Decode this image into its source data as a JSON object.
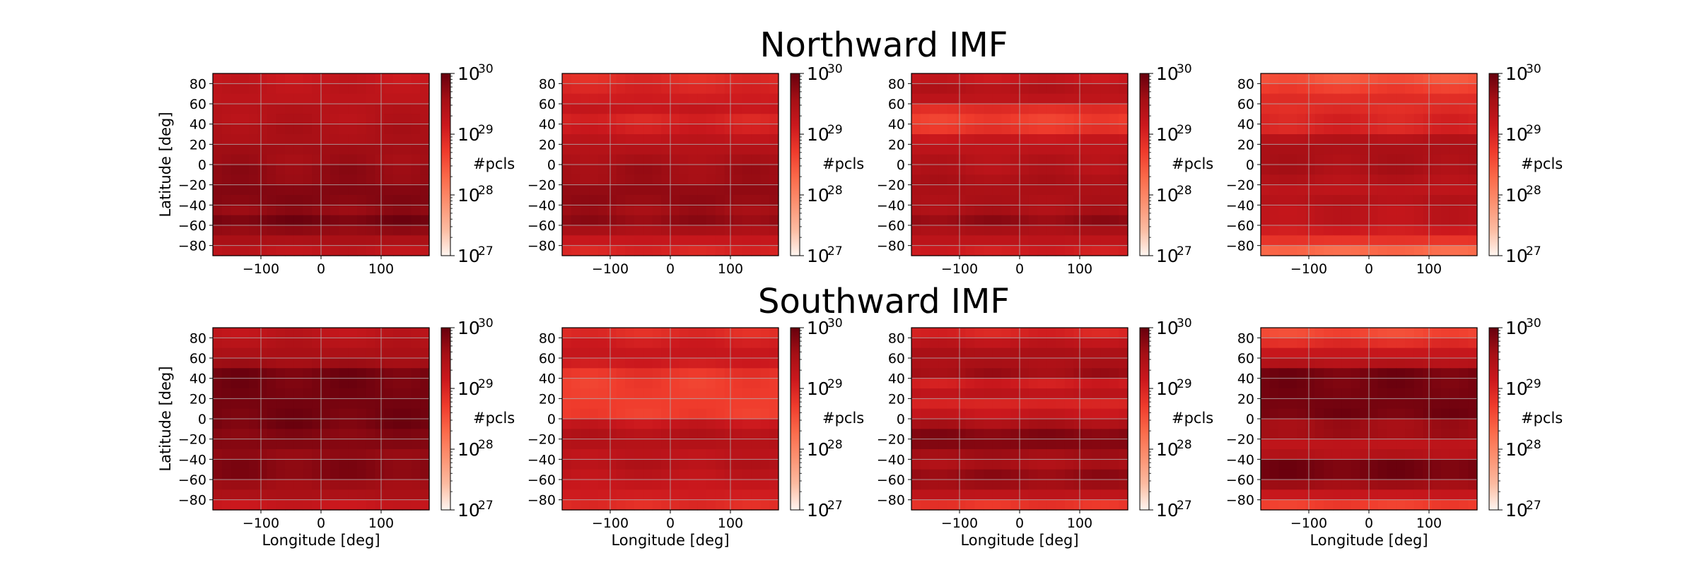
{
  "titles": {
    "row1": "Northward IMF",
    "row2": "Southward IMF"
  },
  "colors": {
    "colormap": [
      "#fff5f0",
      "#fcbba1",
      "#fc9272",
      "#fb6a4a",
      "#ef3b2c",
      "#cb181d",
      "#a50f15",
      "#67000d"
    ],
    "gridline": "#b0b0b0",
    "frame": "#000000"
  },
  "chart_data": [
    {
      "type": "heatmap",
      "panel": "row1-col1",
      "x": [
        -180,
        180
      ],
      "y": [
        -90,
        90
      ],
      "xlim": [
        -180,
        180
      ],
      "ylim": [
        -90,
        90
      ],
      "xticks": [
        -100,
        0,
        100
      ],
      "yticks": [
        80,
        60,
        40,
        20,
        0,
        -20,
        -40,
        -60,
        -80
      ],
      "xlabel": "",
      "ylabel": "Latitude [deg]",
      "colorbar": {
        "label": "#pcls",
        "scale": "log",
        "range": [
          1e+27,
          1e+30
        ],
        "ticks": [
          "10",
          "10",
          "10",
          "10"
        ],
        "tick_exponents": [
          "30",
          "29",
          "28",
          "27"
        ]
      },
      "grid": true,
      "lat_profile_log10": [
        29.2,
        29.3,
        29.3,
        29.4,
        29.4,
        29.5,
        29.5,
        29.6,
        29.6,
        29.7,
        29.7,
        29.8,
        29.8,
        29.7,
        29.9,
        29.7,
        29.5,
        29.3
      ]
    },
    {
      "type": "heatmap",
      "panel": "row1-col2",
      "x": [
        -180,
        180
      ],
      "y": [
        -90,
        90
      ],
      "xlim": [
        -180,
        180
      ],
      "ylim": [
        -90,
        90
      ],
      "xticks": [
        -100,
        0,
        100
      ],
      "yticks": [
        80,
        60,
        40,
        20,
        0,
        -20,
        -40,
        -60,
        -80
      ],
      "xlabel": "",
      "ylabel": "",
      "colorbar": {
        "label": "#pcls",
        "scale": "log",
        "range": [
          1e+27,
          1e+30
        ],
        "ticks": [
          "10",
          "10",
          "10",
          "10"
        ],
        "tick_exponents": [
          "30",
          "29",
          "28",
          "27"
        ]
      },
      "grid": true,
      "lat_profile_log10": [
        28.9,
        29.0,
        29.1,
        29.2,
        29.0,
        29.1,
        29.3,
        29.4,
        29.5,
        29.6,
        29.6,
        29.7,
        29.7,
        29.6,
        29.7,
        29.5,
        29.2,
        29.0
      ]
    },
    {
      "type": "heatmap",
      "panel": "row1-col3",
      "x": [
        -180,
        180
      ],
      "y": [
        -90,
        90
      ],
      "xlim": [
        -180,
        180
      ],
      "ylim": [
        -90,
        90
      ],
      "xticks": [
        -100,
        0,
        100
      ],
      "yticks": [
        80,
        60,
        40,
        20,
        0,
        -20,
        -40,
        -60,
        -80
      ],
      "xlabel": "",
      "ylabel": "",
      "colorbar": {
        "label": "#pcls",
        "scale": "log",
        "range": [
          1e+27,
          1e+30
        ],
        "ticks": [
          "10",
          "10",
          "10",
          "10"
        ],
        "tick_exponents": [
          "30",
          "29",
          "28",
          "27"
        ]
      },
      "grid": true,
      "lat_profile_log10": [
        29.2,
        29.4,
        29.3,
        28.9,
        28.7,
        28.8,
        29.2,
        29.3,
        29.4,
        29.4,
        29.5,
        29.5,
        29.5,
        29.5,
        29.7,
        29.5,
        29.3,
        29.1
      ]
    },
    {
      "type": "heatmap",
      "panel": "row1-col4",
      "x": [
        -180,
        180
      ],
      "y": [
        -90,
        90
      ],
      "xlim": [
        -180,
        180
      ],
      "ylim": [
        -90,
        90
      ],
      "xticks": [
        -100,
        0,
        100
      ],
      "yticks": [
        80,
        60,
        40,
        20,
        0,
        -20,
        -40,
        -60,
        -80
      ],
      "xlabel": "",
      "ylabel": "",
      "colorbar": {
        "label": "#pcls",
        "scale": "log",
        "range": [
          1e+27,
          1e+30
        ],
        "ticks": [
          "10",
          "10",
          "10",
          "10"
        ],
        "tick_exponents": [
          "30",
          "29",
          "28",
          "27"
        ]
      },
      "grid": true,
      "lat_profile_log10": [
        28.5,
        28.7,
        28.9,
        28.9,
        29.0,
        29.0,
        29.4,
        29.5,
        29.5,
        29.5,
        29.4,
        29.3,
        29.4,
        29.3,
        29.3,
        29.1,
        28.8,
        28.3
      ]
    },
    {
      "type": "heatmap",
      "panel": "row2-col1",
      "x": [
        -180,
        180
      ],
      "y": [
        -90,
        90
      ],
      "xlim": [
        -180,
        180
      ],
      "ylim": [
        -90,
        90
      ],
      "xticks": [
        -100,
        0,
        100
      ],
      "yticks": [
        80,
        60,
        40,
        20,
        0,
        -20,
        -40,
        -60,
        -80
      ],
      "xlabel": "Longitude [deg]",
      "ylabel": "Latitude [deg]",
      "colorbar": {
        "label": "#pcls",
        "scale": "log",
        "range": [
          1e+27,
          1e+30
        ],
        "ticks": [
          "10",
          "10",
          "10",
          "10"
        ],
        "tick_exponents": [
          "30",
          "29",
          "28",
          "27"
        ]
      },
      "grid": true,
      "lat_profile_log10": [
        29.3,
        29.4,
        29.5,
        29.6,
        29.9,
        29.9,
        29.9,
        29.9,
        29.9,
        29.9,
        29.8,
        29.8,
        29.7,
        29.8,
        29.8,
        29.6,
        29.5,
        29.2
      ]
    },
    {
      "type": "heatmap",
      "panel": "row2-col2",
      "x": [
        -180,
        180
      ],
      "y": [
        -90,
        90
      ],
      "xlim": [
        -180,
        180
      ],
      "ylim": [
        -90,
        90
      ],
      "xticks": [
        -100,
        0,
        100
      ],
      "yticks": [
        80,
        60,
        40,
        20,
        0,
        -20,
        -40,
        -60,
        -80
      ],
      "xlabel": "Longitude [deg]",
      "ylabel": "",
      "colorbar": {
        "label": "#pcls",
        "scale": "log",
        "range": [
          1e+27,
          1e+30
        ],
        "ticks": [
          "10",
          "10",
          "10",
          "10"
        ],
        "tick_exponents": [
          "30",
          "29",
          "28",
          "27"
        ]
      },
      "grid": true,
      "lat_profile_log10": [
        28.9,
        29.1,
        29.2,
        29.1,
        28.8,
        28.7,
        28.7,
        28.7,
        28.7,
        29.2,
        29.4,
        29.4,
        29.3,
        29.4,
        29.3,
        29.2,
        29.1,
        28.9
      ]
    },
    {
      "type": "heatmap",
      "panel": "row2-col3",
      "x": [
        -180,
        180
      ],
      "y": [
        -90,
        90
      ],
      "xlim": [
        -180,
        180
      ],
      "ylim": [
        -90,
        90
      ],
      "xticks": [
        -100,
        0,
        100
      ],
      "yticks": [
        80,
        60,
        40,
        20,
        0,
        -20,
        -40,
        -60,
        -80
      ],
      "xlabel": "Longitude [deg]",
      "ylabel": "",
      "colorbar": {
        "label": "#pcls",
        "scale": "log",
        "range": [
          1e+27,
          1e+30
        ],
        "ticks": [
          "10",
          "10",
          "10",
          "10"
        ],
        "tick_exponents": [
          "30",
          "29",
          "28",
          "27"
        ]
      },
      "grid": true,
      "lat_profile_log10": [
        29.0,
        29.3,
        29.5,
        29.5,
        29.6,
        29.1,
        29.3,
        29.0,
        29.2,
        29.5,
        29.8,
        29.8,
        29.6,
        29.5,
        29.7,
        29.6,
        29.3,
        28.8
      ]
    },
    {
      "type": "heatmap",
      "panel": "row2-col4",
      "x": [
        -180,
        180
      ],
      "y": [
        -90,
        90
      ],
      "xlim": [
        -180,
        180
      ],
      "ylim": [
        -90,
        90
      ],
      "xticks": [
        -100,
        0,
        100
      ],
      "yticks": [
        80,
        60,
        40,
        20,
        0,
        -20,
        -40,
        -60,
        -80
      ],
      "xlabel": "Longitude [deg]",
      "ylabel": "",
      "colorbar": {
        "label": "#pcls",
        "scale": "log",
        "range": [
          1e+27,
          1e+30
        ],
        "ticks": [
          "10",
          "10",
          "10",
          "10"
        ],
        "tick_exponents": [
          "30",
          "29",
          "28",
          "27"
        ]
      },
      "grid": true,
      "lat_profile_log10": [
        28.6,
        28.9,
        29.2,
        29.4,
        29.9,
        29.9,
        29.9,
        29.9,
        29.9,
        29.6,
        29.6,
        29.3,
        29.4,
        29.9,
        29.9,
        29.6,
        29.2,
        28.7
      ]
    }
  ]
}
